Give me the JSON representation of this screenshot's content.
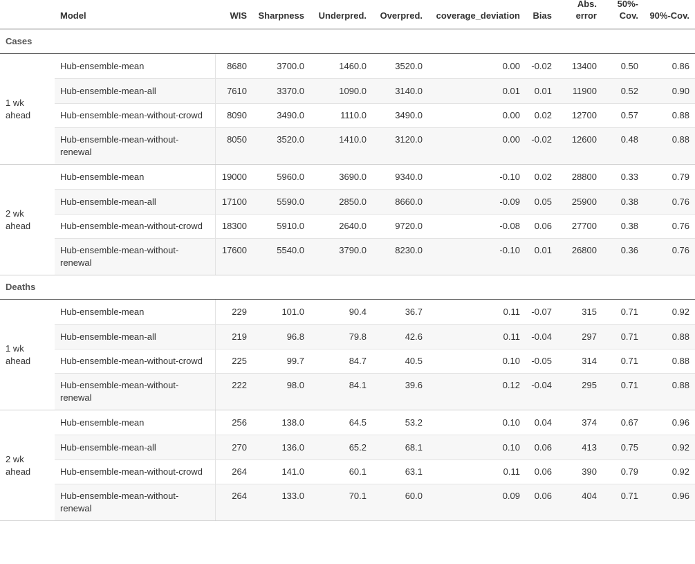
{
  "chart_data": {
    "type": "table",
    "columns": [
      "",
      "Model",
      "WIS",
      "Sharpness",
      "Underpred.",
      "Overpred.",
      "coverage_deviation",
      "Bias",
      "Abs. error",
      "50%-Cov.",
      "90%-Cov."
    ],
    "header": {
      "horizon": "",
      "model": "Model",
      "wis": "WIS",
      "sharpness": "Sharpness",
      "underpred": "Underpred.",
      "overpred": "Overpred.",
      "coverage_deviation": "coverage_deviation",
      "bias": "Bias",
      "abs_error": "Abs. error",
      "cov50": "50%-Cov.",
      "cov90": "90%-Cov."
    },
    "groups": [
      {
        "name": "Cases",
        "blocks": [
          {
            "horizon": "1 wk ahead",
            "rows": [
              {
                "model": "Hub-ensemble-mean",
                "wis": "8680",
                "sharpness": "3700.0",
                "underpred": "1460.0",
                "overpred": "3520.0",
                "coverage_deviation": "0.00",
                "bias": "-0.02",
                "abs_error": "13400",
                "cov50": "0.50",
                "cov90": "0.86"
              },
              {
                "model": "Hub-ensemble-mean-all",
                "wis": "7610",
                "sharpness": "3370.0",
                "underpred": "1090.0",
                "overpred": "3140.0",
                "coverage_deviation": "0.01",
                "bias": "0.01",
                "abs_error": "11900",
                "cov50": "0.52",
                "cov90": "0.90"
              },
              {
                "model": "Hub-ensemble-mean-without-crowd",
                "wis": "8090",
                "sharpness": "3490.0",
                "underpred": "1110.0",
                "overpred": "3490.0",
                "coverage_deviation": "0.00",
                "bias": "0.02",
                "abs_error": "12700",
                "cov50": "0.57",
                "cov90": "0.88"
              },
              {
                "model": "Hub-ensemble-mean-without-renewal",
                "wis": "8050",
                "sharpness": "3520.0",
                "underpred": "1410.0",
                "overpred": "3120.0",
                "coverage_deviation": "0.00",
                "bias": "-0.02",
                "abs_error": "12600",
                "cov50": "0.48",
                "cov90": "0.88"
              }
            ]
          },
          {
            "horizon": "2 wk ahead",
            "rows": [
              {
                "model": "Hub-ensemble-mean",
                "wis": "19000",
                "sharpness": "5960.0",
                "underpred": "3690.0",
                "overpred": "9340.0",
                "coverage_deviation": "-0.10",
                "bias": "0.02",
                "abs_error": "28800",
                "cov50": "0.33",
                "cov90": "0.79"
              },
              {
                "model": "Hub-ensemble-mean-all",
                "wis": "17100",
                "sharpness": "5590.0",
                "underpred": "2850.0",
                "overpred": "8660.0",
                "coverage_deviation": "-0.09",
                "bias": "0.05",
                "abs_error": "25900",
                "cov50": "0.38",
                "cov90": "0.76"
              },
              {
                "model": "Hub-ensemble-mean-without-crowd",
                "wis": "18300",
                "sharpness": "5910.0",
                "underpred": "2640.0",
                "overpred": "9720.0",
                "coverage_deviation": "-0.08",
                "bias": "0.06",
                "abs_error": "27700",
                "cov50": "0.38",
                "cov90": "0.76"
              },
              {
                "model": "Hub-ensemble-mean-without-renewal",
                "wis": "17600",
                "sharpness": "5540.0",
                "underpred": "3790.0",
                "overpred": "8230.0",
                "coverage_deviation": "-0.10",
                "bias": "0.01",
                "abs_error": "26800",
                "cov50": "0.36",
                "cov90": "0.76"
              }
            ]
          }
        ]
      },
      {
        "name": "Deaths",
        "blocks": [
          {
            "horizon": "1 wk ahead",
            "rows": [
              {
                "model": "Hub-ensemble-mean",
                "wis": "229",
                "sharpness": "101.0",
                "underpred": "90.4",
                "overpred": "36.7",
                "coverage_deviation": "0.11",
                "bias": "-0.07",
                "abs_error": "315",
                "cov50": "0.71",
                "cov90": "0.92"
              },
              {
                "model": "Hub-ensemble-mean-all",
                "wis": "219",
                "sharpness": "96.8",
                "underpred": "79.8",
                "overpred": "42.6",
                "coverage_deviation": "0.11",
                "bias": "-0.04",
                "abs_error": "297",
                "cov50": "0.71",
                "cov90": "0.88"
              },
              {
                "model": "Hub-ensemble-mean-without-crowd",
                "wis": "225",
                "sharpness": "99.7",
                "underpred": "84.7",
                "overpred": "40.5",
                "coverage_deviation": "0.10",
                "bias": "-0.05",
                "abs_error": "314",
                "cov50": "0.71",
                "cov90": "0.88"
              },
              {
                "model": "Hub-ensemble-mean-without-renewal",
                "wis": "222",
                "sharpness": "98.0",
                "underpred": "84.1",
                "overpred": "39.6",
                "coverage_deviation": "0.12",
                "bias": "-0.04",
                "abs_error": "295",
                "cov50": "0.71",
                "cov90": "0.88"
              }
            ]
          },
          {
            "horizon": "2 wk ahead",
            "rows": [
              {
                "model": "Hub-ensemble-mean",
                "wis": "256",
                "sharpness": "138.0",
                "underpred": "64.5",
                "overpred": "53.2",
                "coverage_deviation": "0.10",
                "bias": "0.04",
                "abs_error": "374",
                "cov50": "0.67",
                "cov90": "0.96"
              },
              {
                "model": "Hub-ensemble-mean-all",
                "wis": "270",
                "sharpness": "136.0",
                "underpred": "65.2",
                "overpred": "68.1",
                "coverage_deviation": "0.10",
                "bias": "0.06",
                "abs_error": "413",
                "cov50": "0.75",
                "cov90": "0.92"
              },
              {
                "model": "Hub-ensemble-mean-without-crowd",
                "wis": "264",
                "sharpness": "141.0",
                "underpred": "60.1",
                "overpred": "63.1",
                "coverage_deviation": "0.11",
                "bias": "0.06",
                "abs_error": "390",
                "cov50": "0.79",
                "cov90": "0.92"
              },
              {
                "model": "Hub-ensemble-mean-without-renewal",
                "wis": "264",
                "sharpness": "133.0",
                "underpred": "70.1",
                "overpred": "60.0",
                "coverage_deviation": "0.09",
                "bias": "0.06",
                "abs_error": "404",
                "cov50": "0.71",
                "cov90": "0.96"
              }
            ]
          }
        ]
      }
    ]
  }
}
